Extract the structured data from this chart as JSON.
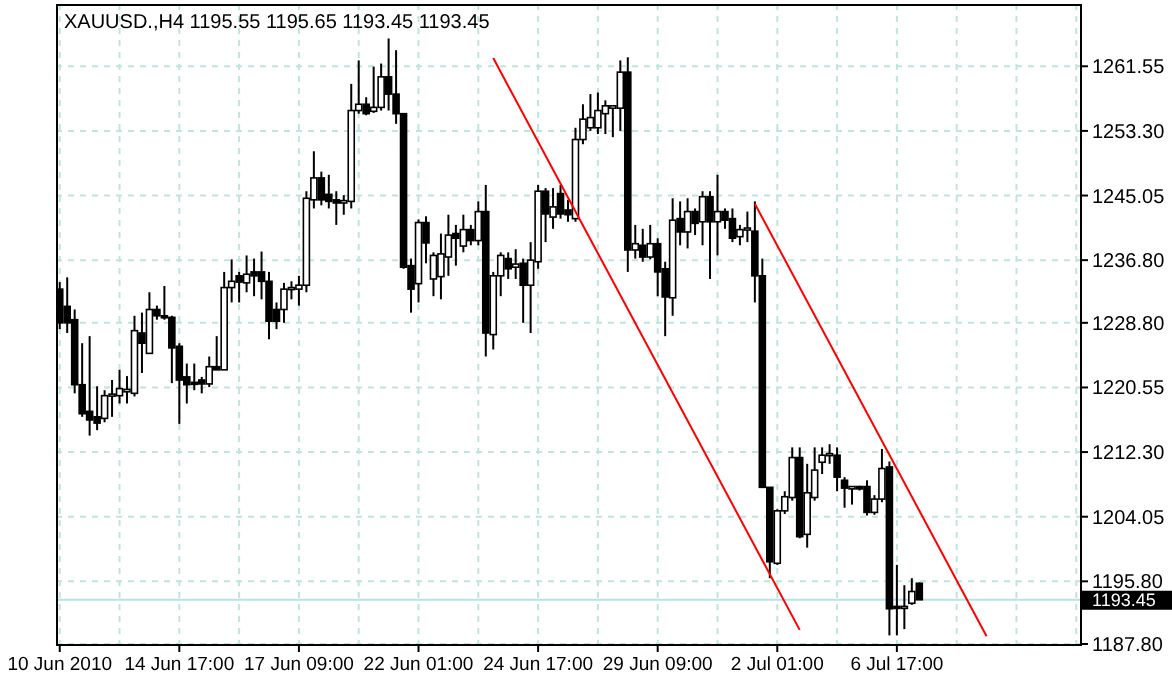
{
  "chart_data": {
    "type": "candlestick",
    "title": "XAUUSD.,H4  1195.55 1195.65 1193.45 1193.45",
    "categories": [
      "10 Jun 2010",
      null,
      null,
      null,
      null,
      null,
      null,
      null,
      null,
      null,
      null,
      null,
      null,
      null,
      null,
      null,
      "14 Jun 17:00",
      null,
      null,
      null,
      null,
      null,
      null,
      null,
      null,
      null,
      null,
      null,
      null,
      null,
      null,
      null,
      "17 Jun 09:00",
      null,
      null,
      null,
      null,
      null,
      null,
      null,
      null,
      null,
      null,
      null,
      null,
      null,
      null,
      null,
      "22 Jun 01:00",
      null,
      null,
      null,
      null,
      null,
      null,
      null,
      null,
      null,
      null,
      null,
      null,
      null,
      null,
      null,
      "24 Jun 17:00",
      null,
      null,
      null,
      null,
      null,
      null,
      null,
      null,
      null,
      null,
      null,
      null,
      null,
      null,
      null,
      "29 Jun 09:00",
      null,
      null,
      null,
      null,
      null,
      null,
      null,
      null,
      null,
      null,
      null,
      null,
      null,
      null,
      null,
      "2 Jul 01:00",
      null,
      null,
      null,
      null,
      null,
      null,
      null,
      null,
      null,
      null,
      null,
      null,
      null,
      null,
      null,
      "6 Jul 17:00",
      null,
      null,
      null,
      null,
      null,
      null,
      null,
      null,
      null,
      null,
      null,
      null,
      null,
      null,
      null,
      null,
      null,
      null,
      null,
      null,
      null,
      null,
      null,
      null
    ],
    "ohlc": [
      [
        1233.1,
        1234,
        1228,
        1228.8
      ],
      [
        1230.9,
        1234.6,
        1227.5,
        1228.8
      ],
      [
        1229.2,
        1230.5,
        1219.8,
        1220.9
      ],
      [
        1220.9,
        1226.2,
        1216.8,
        1217.2
      ],
      [
        1217.5,
        1227.1,
        1214.4,
        1216.4
      ],
      [
        1216.8,
        1220.7,
        1215.1,
        1216.0
      ],
      [
        1216.6,
        1220.2,
        1216.1,
        1219.5
      ],
      [
        1219.5,
        1221.5,
        1216.8,
        1219.7
      ],
      [
        1219.5,
        1222.8,
        1218.5,
        1220.4
      ],
      [
        1220.0,
        1222.0,
        1218.5,
        1220.3
      ],
      [
        1219.8,
        1229.7,
        1219.4,
        1227.8
      ],
      [
        1227.5,
        1230.1,
        1222.4,
        1226.2
      ],
      [
        1224.9,
        1232.7,
        1224.9,
        1230.5
      ],
      [
        1230.5,
        1231.0,
        1229.2,
        1229.7
      ],
      [
        1229.7,
        1233.5,
        1229.2,
        1229.5
      ],
      [
        1229.5,
        1229.7,
        1221.1,
        1225.6
      ],
      [
        1225.8,
        1226.2,
        1215.9,
        1221.5
      ],
      [
        1221.9,
        1223.6,
        1218.5,
        1220.9
      ],
      [
        1221.2,
        1223.6,
        1220.2,
        1221.0
      ],
      [
        1221.5,
        1221.9,
        1219.8,
        1221.0
      ],
      [
        1221.0,
        1224.5,
        1220.6,
        1223.2
      ],
      [
        1223.2,
        1227.1,
        1222.8,
        1222.8
      ],
      [
        1222.8,
        1235.3,
        1222.8,
        1233.3
      ],
      [
        1233.3,
        1236.9,
        1231.4,
        1234.1
      ],
      [
        1234.8,
        1235.3,
        1231.4,
        1234.0
      ],
      [
        1233.9,
        1237.4,
        1232.7,
        1235.0
      ],
      [
        1235.3,
        1237.0,
        1232.2,
        1234.8
      ],
      [
        1235.3,
        1237.9,
        1231.8,
        1234.1
      ],
      [
        1234.1,
        1235.3,
        1226.7,
        1229.0
      ],
      [
        1230.5,
        1231.4,
        1228.0,
        1229.0
      ],
      [
        1230.5,
        1233.9,
        1228.8,
        1233.1
      ],
      [
        1233.1,
        1234.1,
        1231.8,
        1233.3
      ],
      [
        1233.1,
        1234.8,
        1231.0,
        1233.6
      ],
      [
        1233.6,
        1245.6,
        1232.7,
        1244.7
      ],
      [
        1244.5,
        1250.7,
        1243.4,
        1247.3
      ],
      [
        1247.3,
        1248.1,
        1243.8,
        1244.5
      ],
      [
        1245.2,
        1247.7,
        1243.4,
        1244.3
      ],
      [
        1244.5,
        1245.6,
        1241.3,
        1244.1
      ],
      [
        1244.1,
        1245.1,
        1242.6,
        1244.4
      ],
      [
        1244.3,
        1259.3,
        1243.4,
        1255.9
      ],
      [
        1255.9,
        1262.3,
        1255.5,
        1256.7
      ],
      [
        1256.7,
        1257.6,
        1255.3,
        1255.5
      ],
      [
        1255.8,
        1261.5,
        1255.6,
        1256.3
      ],
      [
        1256.3,
        1261.9,
        1255.9,
        1260.2
      ],
      [
        1260.2,
        1265.1,
        1255.9,
        1258.0
      ],
      [
        1258.0,
        1263.6,
        1254.2,
        1255.5
      ],
      [
        1255.5,
        1255.5,
        1235.7,
        1235.9
      ],
      [
        1236.1,
        1237.0,
        1230.1,
        1233.1
      ],
      [
        1233.8,
        1242.0,
        1231.4,
        1241.6
      ],
      [
        1241.6,
        1242.4,
        1236.4,
        1239.0
      ],
      [
        1234.4,
        1237.8,
        1232.2,
        1237.4
      ],
      [
        1234.7,
        1240.2,
        1231.8,
        1237.6
      ],
      [
        1237.2,
        1242.6,
        1234.8,
        1240.0
      ],
      [
        1240.2,
        1241.3,
        1236.1,
        1239.6
      ],
      [
        1238.6,
        1242.6,
        1237.8,
        1240.7
      ],
      [
        1240.7,
        1241.3,
        1238.7,
        1239.3
      ],
      [
        1239.3,
        1244.3,
        1238.7,
        1243.0
      ],
      [
        1243.0,
        1246.4,
        1224.5,
        1227.5
      ],
      [
        1227.3,
        1235.3,
        1225.4,
        1234.8
      ],
      [
        1234.8,
        1237.8,
        1232.2,
        1237.4
      ],
      [
        1237.0,
        1237.8,
        1234.4,
        1235.7
      ],
      [
        1235.9,
        1238.2,
        1234.4,
        1236.3
      ],
      [
        1236.4,
        1237.0,
        1228.8,
        1233.6
      ],
      [
        1233.6,
        1239.1,
        1227.5,
        1236.8
      ],
      [
        1236.6,
        1246.4,
        1235.7,
        1245.6
      ],
      [
        1245.6,
        1246.0,
        1239.1,
        1242.7
      ],
      [
        1242.3,
        1246.0,
        1240.8,
        1243.6
      ],
      [
        1245.3,
        1246.4,
        1242.1,
        1242.7
      ],
      [
        1243.2,
        1244.5,
        1241.7,
        1242.6
      ],
      [
        1242.1,
        1253.7,
        1241.7,
        1252.2
      ],
      [
        1252.2,
        1256.7,
        1251.6,
        1254.8
      ],
      [
        1253.7,
        1258.0,
        1253.3,
        1255.0
      ],
      [
        1253.7,
        1258.2,
        1252.9,
        1255.9
      ],
      [
        1255.5,
        1257.2,
        1252.9,
        1256.5
      ],
      [
        1256.2,
        1256.5,
        1252.5,
        1256.5
      ],
      [
        1256.2,
        1262.3,
        1253.3,
        1260.8
      ],
      [
        1260.8,
        1262.7,
        1235.3,
        1238.1
      ],
      [
        1238.1,
        1241.3,
        1237.0,
        1238.9
      ],
      [
        1238.7,
        1240.8,
        1236.6,
        1237.2
      ],
      [
        1237.2,
        1241.3,
        1236.9,
        1238.9
      ],
      [
        1238.9,
        1239.6,
        1232.2,
        1235.3
      ],
      [
        1235.7,
        1236.6,
        1227.1,
        1232.1
      ],
      [
        1232.0,
        1244.7,
        1229.7,
        1241.9
      ],
      [
        1242.1,
        1244.3,
        1238.7,
        1240.4
      ],
      [
        1240.4,
        1244.7,
        1238.3,
        1243.0
      ],
      [
        1243.0,
        1243.4,
        1240.0,
        1241.5
      ],
      [
        1241.7,
        1245.6,
        1238.7,
        1244.9
      ],
      [
        1244.9,
        1245.6,
        1234.4,
        1241.7
      ],
      [
        1241.7,
        1247.7,
        1237.4,
        1243.0
      ],
      [
        1243.0,
        1243.4,
        1240.8,
        1241.9
      ],
      [
        1242.1,
        1243.4,
        1239.1,
        1239.6
      ],
      [
        1239.8,
        1241.3,
        1238.7,
        1240.7
      ],
      [
        1240.7,
        1243.0,
        1239.1,
        1240.9
      ],
      [
        1240.5,
        1244.3,
        1231.4,
        1234.8
      ],
      [
        1234.8,
        1237.0,
        1207.8,
        1207.8
      ],
      [
        1207.8,
        1207.8,
        1196.2,
        1198.3
      ],
      [
        1198.1,
        1205.0,
        1197.9,
        1204.8
      ],
      [
        1204.8,
        1207.3,
        1204.4,
        1206.6
      ],
      [
        1206.5,
        1212.9,
        1206.1,
        1211.6
      ],
      [
        1211.6,
        1212.9,
        1201.3,
        1201.5
      ],
      [
        1201.8,
        1210.8,
        1200.1,
        1207.1
      ],
      [
        1206.5,
        1212.9,
        1206.1,
        1210.0
      ],
      [
        1211.0,
        1212.9,
        1209.5,
        1211.9
      ],
      [
        1211.9,
        1213.3,
        1210.8,
        1212.1
      ],
      [
        1211.9,
        1212.9,
        1207.3,
        1209.1
      ],
      [
        1208.7,
        1209.1,
        1205.2,
        1207.7
      ],
      [
        1207.6,
        1207.9,
        1205.6,
        1207.9
      ],
      [
        1207.9,
        1208.0,
        1207.4,
        1207.6
      ],
      [
        1207.9,
        1208.7,
        1204.2,
        1204.6
      ],
      [
        1204.6,
        1206.8,
        1204.3,
        1206.3
      ],
      [
        1206.3,
        1212.7,
        1205.9,
        1210.2
      ],
      [
        1210.4,
        1211.1,
        1188.9,
        1192.3
      ],
      [
        1192.6,
        1197.9,
        1188.9,
        1192.4
      ],
      [
        1192.4,
        1195.3,
        1189.7,
        1192.6
      ],
      [
        1193.0,
        1196.2,
        1192.8,
        1194.5
      ],
      [
        1195.55,
        1195.65,
        1193.45,
        1193.45
      ],
      null,
      null,
      null,
      null,
      null,
      null,
      null,
      null,
      null,
      null,
      null,
      null,
      null,
      null,
      null,
      null,
      null,
      null,
      null,
      null,
      null
    ],
    "series": [
      {
        "type": "line",
        "color": "#ff0000",
        "values": [
          null,
          null,
          null,
          null,
          null,
          null,
          null,
          null,
          null,
          null,
          null,
          null,
          null,
          null,
          null,
          null,
          null,
          null,
          null,
          null,
          null,
          null,
          null,
          null,
          null,
          null,
          null,
          null,
          null,
          null,
          null,
          null,
          null,
          null,
          null,
          null,
          null,
          null,
          null,
          null,
          null,
          null,
          null,
          null,
          null,
          null,
          null,
          null,
          null,
          null,
          null,
          null,
          null,
          null,
          null,
          null,
          null,
          null,
          1262.6,
          null,
          null,
          null,
          null,
          null,
          null,
          null,
          null,
          null,
          null,
          null,
          null,
          null,
          null,
          null,
          null,
          null,
          null,
          null,
          null,
          null,
          null,
          null,
          null,
          null,
          null,
          null,
          null,
          null,
          null,
          null,
          null,
          null,
          null,
          null,
          null,
          null,
          null,
          null,
          null,
          1189.6,
          null,
          null,
          null,
          null,
          null,
          null,
          null,
          null,
          null,
          null,
          null,
          null,
          null,
          null,
          null,
          null,
          null,
          null,
          null,
          null,
          null,
          null,
          null,
          null,
          null,
          null,
          null,
          null,
          null,
          null,
          null,
          null,
          null,
          null,
          null,
          null,
          null
        ]
      },
      {
        "type": "line",
        "color": "#ff0000",
        "values": [
          null,
          null,
          null,
          null,
          null,
          null,
          null,
          null,
          null,
          null,
          null,
          null,
          null,
          null,
          null,
          null,
          null,
          null,
          null,
          null,
          null,
          null,
          null,
          null,
          null,
          null,
          null,
          null,
          null,
          null,
          null,
          null,
          null,
          null,
          null,
          null,
          null,
          null,
          null,
          null,
          null,
          null,
          null,
          null,
          null,
          null,
          null,
          null,
          null,
          null,
          null,
          null,
          null,
          null,
          null,
          null,
          null,
          null,
          null,
          null,
          null,
          null,
          null,
          null,
          null,
          null,
          null,
          null,
          null,
          null,
          null,
          null,
          null,
          null,
          null,
          null,
          null,
          null,
          null,
          null,
          null,
          null,
          null,
          null,
          null,
          null,
          null,
          null,
          null,
          null,
          null,
          null,
          null,
          1244.0,
          null,
          null,
          null,
          null,
          null,
          null,
          null,
          null,
          null,
          null,
          null,
          null,
          null,
          null,
          null,
          null,
          null,
          null,
          null,
          null,
          null,
          null,
          null,
          null,
          null,
          null,
          null,
          null,
          null,
          null,
          1188.8,
          null,
          null,
          null,
          null,
          null,
          null,
          null,
          null,
          null,
          null,
          null,
          null
        ]
      }
    ],
    "ylim": [
      1187.8,
      1269.5
    ],
    "yticks": [
      {
        "value": 1261.55,
        "label": "1261.55"
      },
      {
        "value": 1253.3,
        "label": "1253.30"
      },
      {
        "value": 1245.05,
        "label": "1245.05"
      },
      {
        "value": 1236.8,
        "label": "1236.80"
      },
      {
        "value": 1228.8,
        "label": "1228.80"
      },
      {
        "value": 1220.55,
        "label": "1220.55"
      },
      {
        "value": 1212.3,
        "label": "1212.30"
      },
      {
        "value": 1204.05,
        "label": "1204.05"
      },
      {
        "value": 1195.8,
        "label": "1195.80"
      },
      {
        "value": 1187.8,
        "label": "1187.80"
      }
    ],
    "ref_lines": [
      {
        "axis": "y",
        "value": 1193.45,
        "label": "1193.45",
        "color": "#b4e4e4"
      }
    ],
    "grid": true
  }
}
